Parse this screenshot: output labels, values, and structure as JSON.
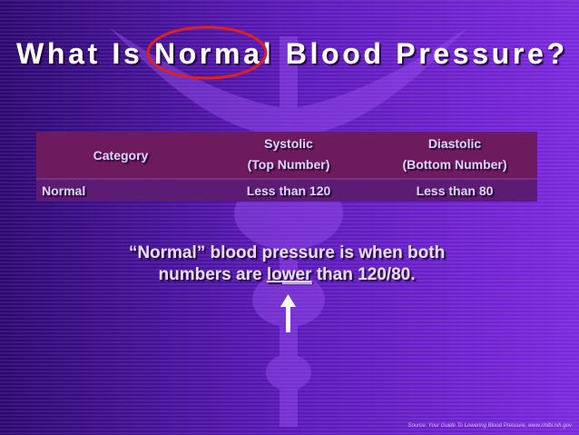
{
  "title": "What Is Normal Blood Pressure?",
  "table": {
    "header": [
      [
        "Category"
      ],
      [
        "Systolic",
        "(Top Number)"
      ],
      [
        "Diastolic",
        "(Bottom Number)"
      ]
    ],
    "rows": [
      [
        "Normal",
        "Less than 120",
        "Less than 80"
      ]
    ]
  },
  "caption": {
    "line1": "“Normal” blood pressure is when both",
    "line2_start": "numbers are",
    "emphasis": "lower",
    "line2_end": "than 120/80."
  },
  "source": "Source:  Your Guide To Lowering Blood Pressure, www.nhlbi.nih.gov"
}
